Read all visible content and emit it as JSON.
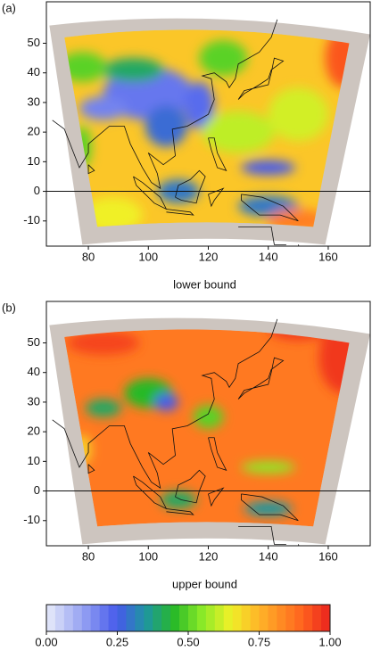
{
  "panels": [
    {
      "label": "(a)",
      "xlabel": "lower bound",
      "xlim": [
        66,
        174
      ],
      "ylim": [
        -18.5,
        64
      ],
      "xticks": [
        80,
        100,
        120,
        140,
        160
      ],
      "yticks": [
        -10,
        0,
        10,
        20,
        30,
        40,
        50
      ]
    },
    {
      "label": "(b)",
      "xlabel": "upper bound",
      "xlim": [
        66,
        174
      ],
      "ylim": [
        -18.5,
        64
      ],
      "xticks": [
        80,
        100,
        120,
        140,
        160
      ],
      "yticks": [
        -10,
        0,
        10,
        20,
        30,
        40,
        50
      ]
    }
  ],
  "colorbar": {
    "lim": [
      0,
      1
    ],
    "ticks": [
      {
        "value": 0,
        "label": "0.00"
      },
      {
        "value": 0.25,
        "label": "0.25"
      },
      {
        "value": 0.5,
        "label": "0.50"
      },
      {
        "value": 0.75,
        "label": "0.75"
      },
      {
        "value": 1,
        "label": "1.00"
      }
    ]
  }
}
